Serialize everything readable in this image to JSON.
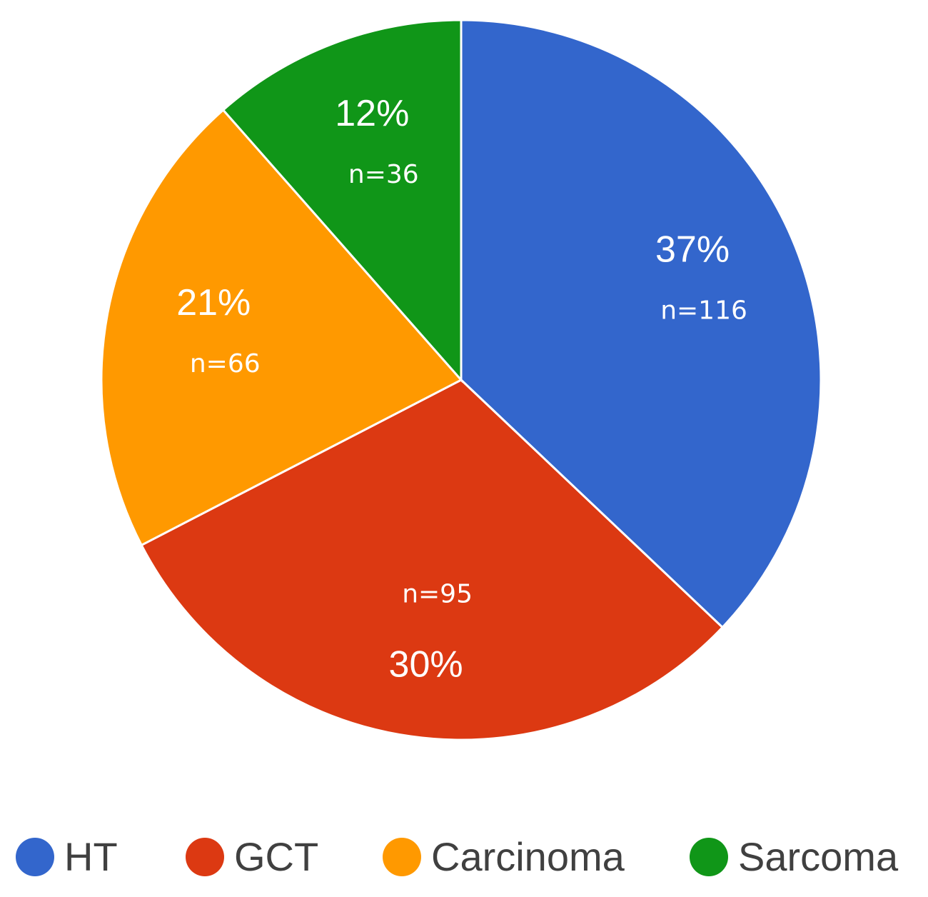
{
  "chart_data": {
    "type": "pie",
    "categories": [
      "HT",
      "GCT",
      "Carcinoma",
      "Sarcoma"
    ],
    "values": [
      116,
      95,
      66,
      36
    ],
    "percent_labels": [
      "37%",
      "30%",
      "21%",
      "12%"
    ],
    "count_labels": [
      "n=116",
      "n=95",
      "n=66",
      "n=36"
    ],
    "colors": [
      "#3366cc",
      "#dc3912",
      "#ff9900",
      "#109618"
    ],
    "start_angle_deg": 0,
    "direction": "clockwise",
    "legend_position": "bottom"
  }
}
